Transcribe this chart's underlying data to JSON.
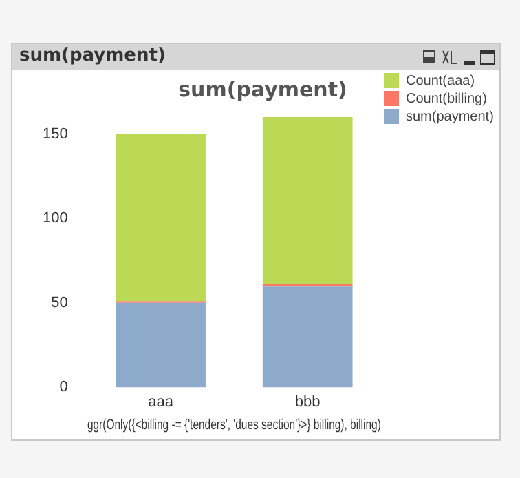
{
  "chart_data": {
    "type": "bar",
    "title": "sum(payment)",
    "xlabel": "ggr(Only({<billing -= {'tenders', 'dues section'}>} billing), billing)",
    "categories": [
      "aaa",
      "bbb"
    ],
    "stacked": true,
    "series": [
      {
        "name": "sum(payment)",
        "color": "#8eaacb",
        "values": [
          50,
          60
        ]
      },
      {
        "name": "Count(billing)",
        "color": "#fa7864",
        "values": [
          1,
          1
        ]
      },
      {
        "name": "Count(aaa)",
        "color": "#bcd955",
        "values": [
          99,
          99
        ]
      }
    ],
    "ylim": [
      0,
      160
    ],
    "yticks": [
      0,
      50,
      100,
      150
    ],
    "grid": false,
    "legend": "top right"
  }
}
